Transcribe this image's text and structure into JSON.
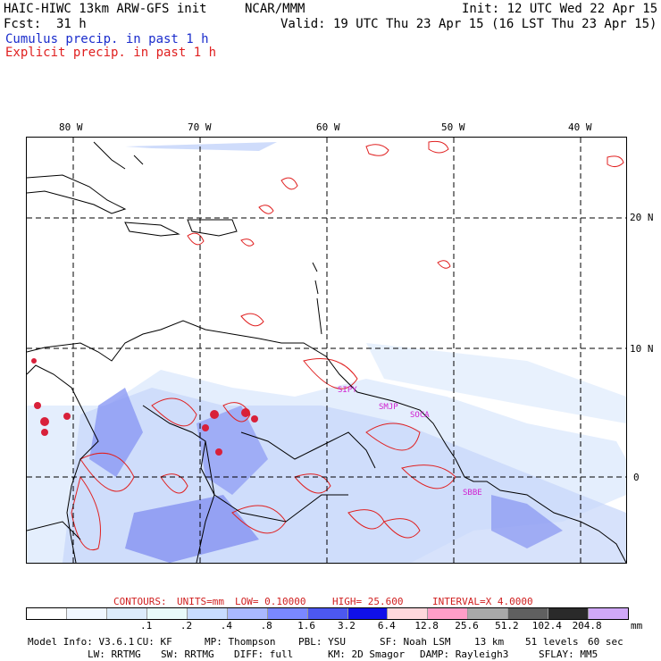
{
  "header": {
    "model": "HAIC-HIWC 13km ARW-GFS init",
    "org": "NCAR/MMM",
    "init": "Init: 12 UTC Wed 22 Apr 15",
    "fcst_label": "Fcst:",
    "fcst_value": "31 h",
    "valid": "Valid: 19 UTC Thu 23 Apr 15 (16 LST Thu 23 Apr 15)",
    "cumulus": "Cumulus precip. in past 1 h",
    "explicit": "Explicit precip. in past 1 h",
    "cumulus_color": "#1a2ccc",
    "explicit_color": "#e02020"
  },
  "map": {
    "lon_labels": [
      "80 W",
      "70 W",
      "60 W",
      "50 W",
      "40 W"
    ],
    "lat_labels": [
      "20 N",
      "10 N",
      "0"
    ],
    "stations": [
      "SIPY",
      "SMJP",
      "SOCA",
      "SBBE"
    ]
  },
  "contours": {
    "title": "CONTOURS:",
    "units": "UNITS=mm",
    "low": "LOW= 0.10000",
    "high": "HIGH= 25.600",
    "interval": "INTERVAL=X 4.0000",
    "color": "#d02020"
  },
  "legend": {
    "colors": [
      "#ffffff",
      "#f0f6ff",
      "#dcebfb",
      "#e8fafa",
      "#c8dcff",
      "#aab8ff",
      "#7a88ff",
      "#4c58f0",
      "#1010e8",
      "#ffd8dc",
      "#ff9ec8",
      "#a9a9a9",
      "#606060",
      "#2a2a2a",
      "#d0a8f8"
    ],
    "labels": [
      ".1",
      ".2",
      ".4",
      ".8",
      "1.6",
      "3.2",
      "6.4",
      "12.8",
      "25.6",
      "51.2",
      "102.4",
      "204.8"
    ],
    "units": "mm"
  },
  "model_info": {
    "line1": [
      "Model Info: V3.6.1",
      "CU: KF",
      "MP: Thompson",
      "PBL: YSU",
      "SF: Noah LSM",
      "13 km",
      "51 levels",
      "60 sec"
    ],
    "line2": [
      "LW: RRTMG",
      "SW: RRTMG",
      "DIFF: full",
      "KM: 2D Smagor",
      "DAMP: Rayleigh3",
      "SFLAY: MM5"
    ]
  }
}
